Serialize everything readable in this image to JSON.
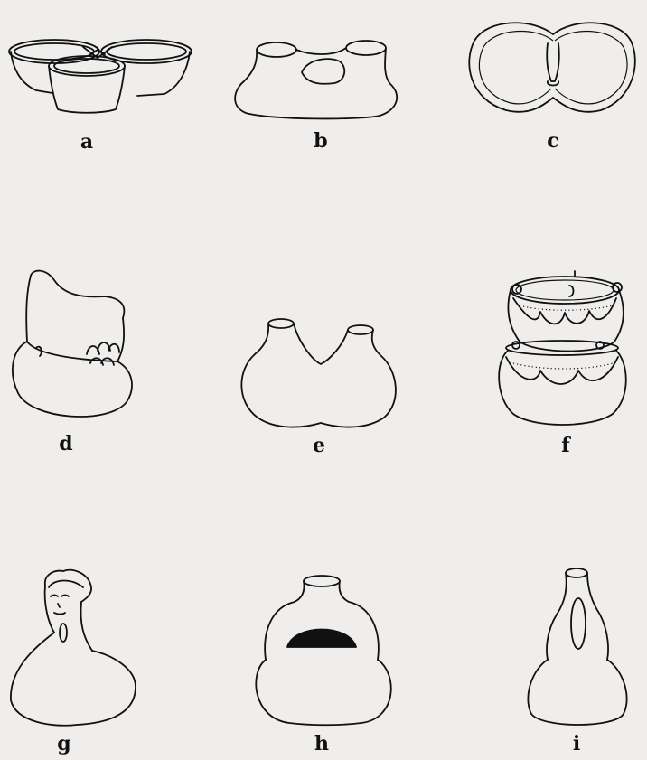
{
  "figures": [
    {
      "id": "a",
      "label": "a",
      "icon": "triple-bowl-vessel-icon"
    },
    {
      "id": "b",
      "label": "b",
      "icon": "double-spout-bridged-vessel-icon"
    },
    {
      "id": "c",
      "label": "c",
      "icon": "double-bowl-top-view-icon"
    },
    {
      "id": "d",
      "label": "d",
      "icon": "effigy-rim-jar-icon"
    },
    {
      "id": "e",
      "label": "e",
      "icon": "twin-neck-gourd-vessel-icon"
    },
    {
      "id": "f",
      "label": "f",
      "icon": "stacked-decorated-jar-icon"
    },
    {
      "id": "g",
      "label": "g",
      "icon": "human-effigy-bottle-icon"
    },
    {
      "id": "h",
      "label": "h",
      "icon": "stirrup-handle-bottle-icon"
    },
    {
      "id": "i",
      "label": "i",
      "icon": "loop-neck-bottle-icon"
    }
  ]
}
